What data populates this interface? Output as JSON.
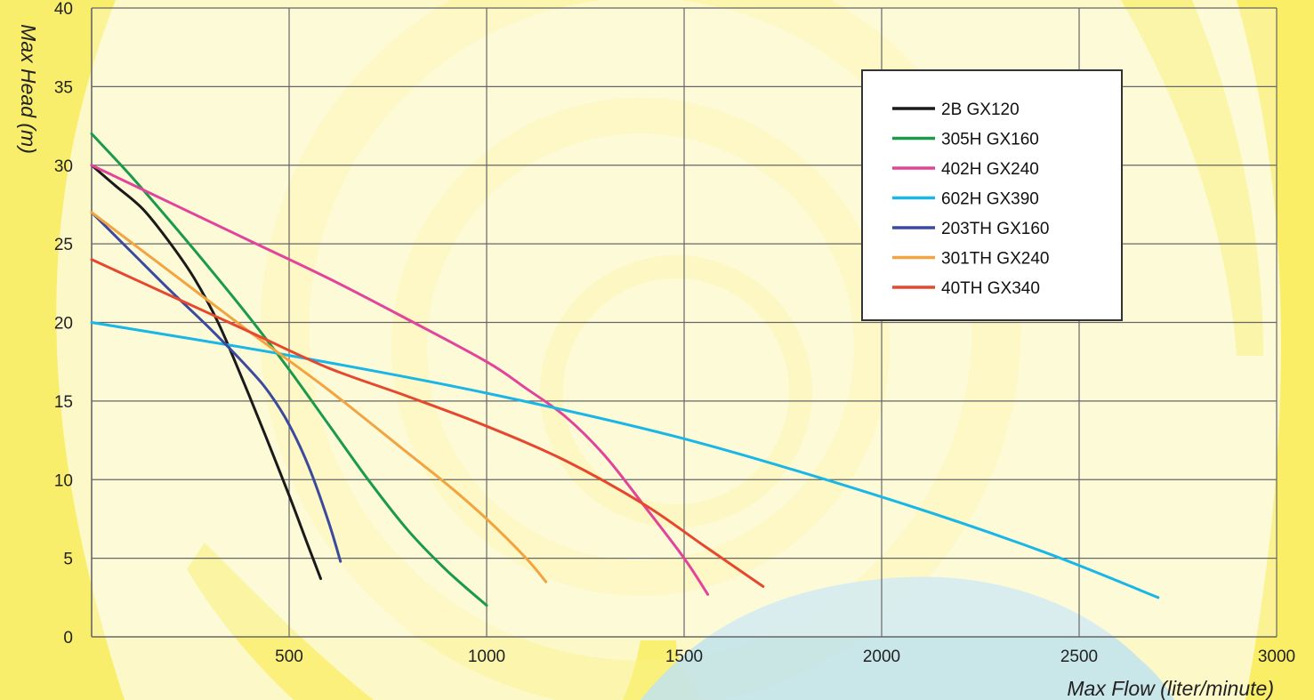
{
  "chart_data": {
    "type": "line",
    "title": "",
    "xlabel": "Max Flow (liter/minute)",
    "ylabel": "Max Head (m)",
    "xlim": [
      0,
      3000
    ],
    "ylim": [
      0,
      40
    ],
    "x_ticks": [
      500,
      1000,
      1500,
      2000,
      2500,
      3000
    ],
    "y_ticks": [
      0,
      5,
      10,
      15,
      20,
      25,
      30,
      35,
      40
    ],
    "grid": true,
    "legend_position": "top-right",
    "series": [
      {
        "name": "2B GX120",
        "color": "#1a1a1a",
        "x": [
          0,
          60,
          130,
          200,
          260,
          320,
          380,
          440,
          500,
          545,
          580
        ],
        "y": [
          30,
          28.7,
          27.2,
          25,
          22.8,
          20,
          16.5,
          12.8,
          9,
          6,
          3.7
        ]
      },
      {
        "name": "305H GX160",
        "color": "#1a9a4a",
        "x": [
          0,
          100,
          200,
          300,
          400,
          500,
          600,
          700,
          800,
          900,
          1000
        ],
        "y": [
          32,
          29.3,
          26.4,
          23.4,
          20.3,
          17,
          13.5,
          10,
          6.8,
          4.2,
          2
        ]
      },
      {
        "name": "402H GX240",
        "color": "#e2449a",
        "x": [
          0,
          200,
          400,
          600,
          800,
          1000,
          1100,
          1200,
          1300,
          1400,
          1500,
          1560
        ],
        "y": [
          30,
          27.6,
          25.2,
          22.8,
          20.2,
          17.5,
          15.8,
          14,
          11.5,
          8.3,
          5,
          2.7
        ]
      },
      {
        "name": "602H GX390",
        "color": "#19b6e6",
        "x": [
          0,
          500,
          1000,
          1500,
          2000,
          2400,
          2700
        ],
        "y": [
          20,
          17.9,
          15.5,
          12.6,
          8.9,
          5.5,
          2.5
        ]
      },
      {
        "name": "203TH GX160",
        "color": "#3c4a9e",
        "x": [
          0,
          100,
          200,
          300,
          400,
          450,
          500,
          550,
          600,
          630
        ],
        "y": [
          27,
          24.5,
          22,
          19.6,
          17,
          15.5,
          13.5,
          10.8,
          7.3,
          4.8
        ]
      },
      {
        "name": "301TH GX240",
        "color": "#f2a440",
        "x": [
          0,
          200,
          400,
          600,
          800,
          900,
          1000,
          1100,
          1150
        ],
        "y": [
          27,
          23.2,
          19.4,
          15.7,
          11.7,
          9.7,
          7.5,
          5,
          3.5
        ]
      },
      {
        "name": "40TH GX340",
        "color": "#e5482e",
        "x": [
          0,
          200,
          400,
          600,
          800,
          1000,
          1200,
          1400,
          1550,
          1700
        ],
        "y": [
          24,
          21.7,
          19.4,
          17.1,
          15.3,
          13.4,
          11.2,
          8.4,
          5.8,
          3.2
        ]
      }
    ]
  },
  "page": {
    "colors": {
      "background": "#fdf8c8",
      "plot_background": "rgba(255,255,255,0.30)",
      "grid": "#666666",
      "swirl_yellow": "#f8ec5a",
      "swirl_pale": "#fbf28c",
      "water_blue": "#bfe3ef"
    }
  }
}
